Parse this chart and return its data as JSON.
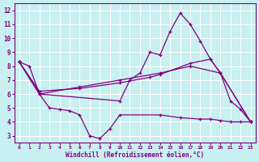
{
  "xlabel": "Windchill (Refroidissement éolien,°C)",
  "background_color": "#c8f0f0",
  "line_color": "#800080",
  "grid_color": "#ffffff",
  "x_ticks": [
    0,
    1,
    2,
    3,
    4,
    5,
    6,
    7,
    8,
    9,
    10,
    11,
    12,
    13,
    14,
    15,
    16,
    17,
    18,
    19,
    20,
    21,
    22,
    23
  ],
  "y_ticks": [
    3,
    4,
    5,
    6,
    7,
    8,
    9,
    10,
    11,
    12
  ],
  "ylim": [
    2.5,
    12.5
  ],
  "xlim": [
    -0.5,
    23.5
  ],
  "line1_x": [
    0,
    1,
    2,
    10,
    11,
    12,
    13,
    14,
    15,
    16,
    17,
    18,
    19,
    20,
    21,
    22,
    23
  ],
  "line1_y": [
    8.3,
    8.0,
    6.0,
    5.5,
    7.0,
    7.5,
    9.0,
    8.8,
    10.5,
    11.8,
    11.0,
    9.8,
    8.5,
    7.5,
    5.5,
    4.9,
    4.0
  ],
  "line2_x": [
    0,
    2,
    6,
    10,
    13,
    14,
    17,
    19,
    20,
    23
  ],
  "line2_y": [
    8.3,
    6.2,
    6.4,
    6.8,
    7.2,
    7.4,
    8.2,
    8.5,
    7.5,
    4.0
  ],
  "line3_x": [
    0,
    2,
    6,
    10,
    14,
    17,
    20,
    23
  ],
  "line3_y": [
    8.3,
    6.0,
    6.5,
    7.0,
    7.5,
    8.0,
    7.5,
    4.0
  ],
  "line4_x": [
    0,
    2,
    3,
    4,
    5,
    6,
    7,
    8,
    9,
    10,
    14,
    16,
    18,
    19,
    20,
    21,
    22,
    23
  ],
  "line4_y": [
    8.3,
    6.0,
    5.0,
    4.9,
    4.8,
    4.5,
    3.0,
    2.8,
    3.5,
    4.5,
    4.5,
    4.3,
    4.2,
    4.2,
    4.1,
    4.0,
    4.0,
    4.0
  ]
}
